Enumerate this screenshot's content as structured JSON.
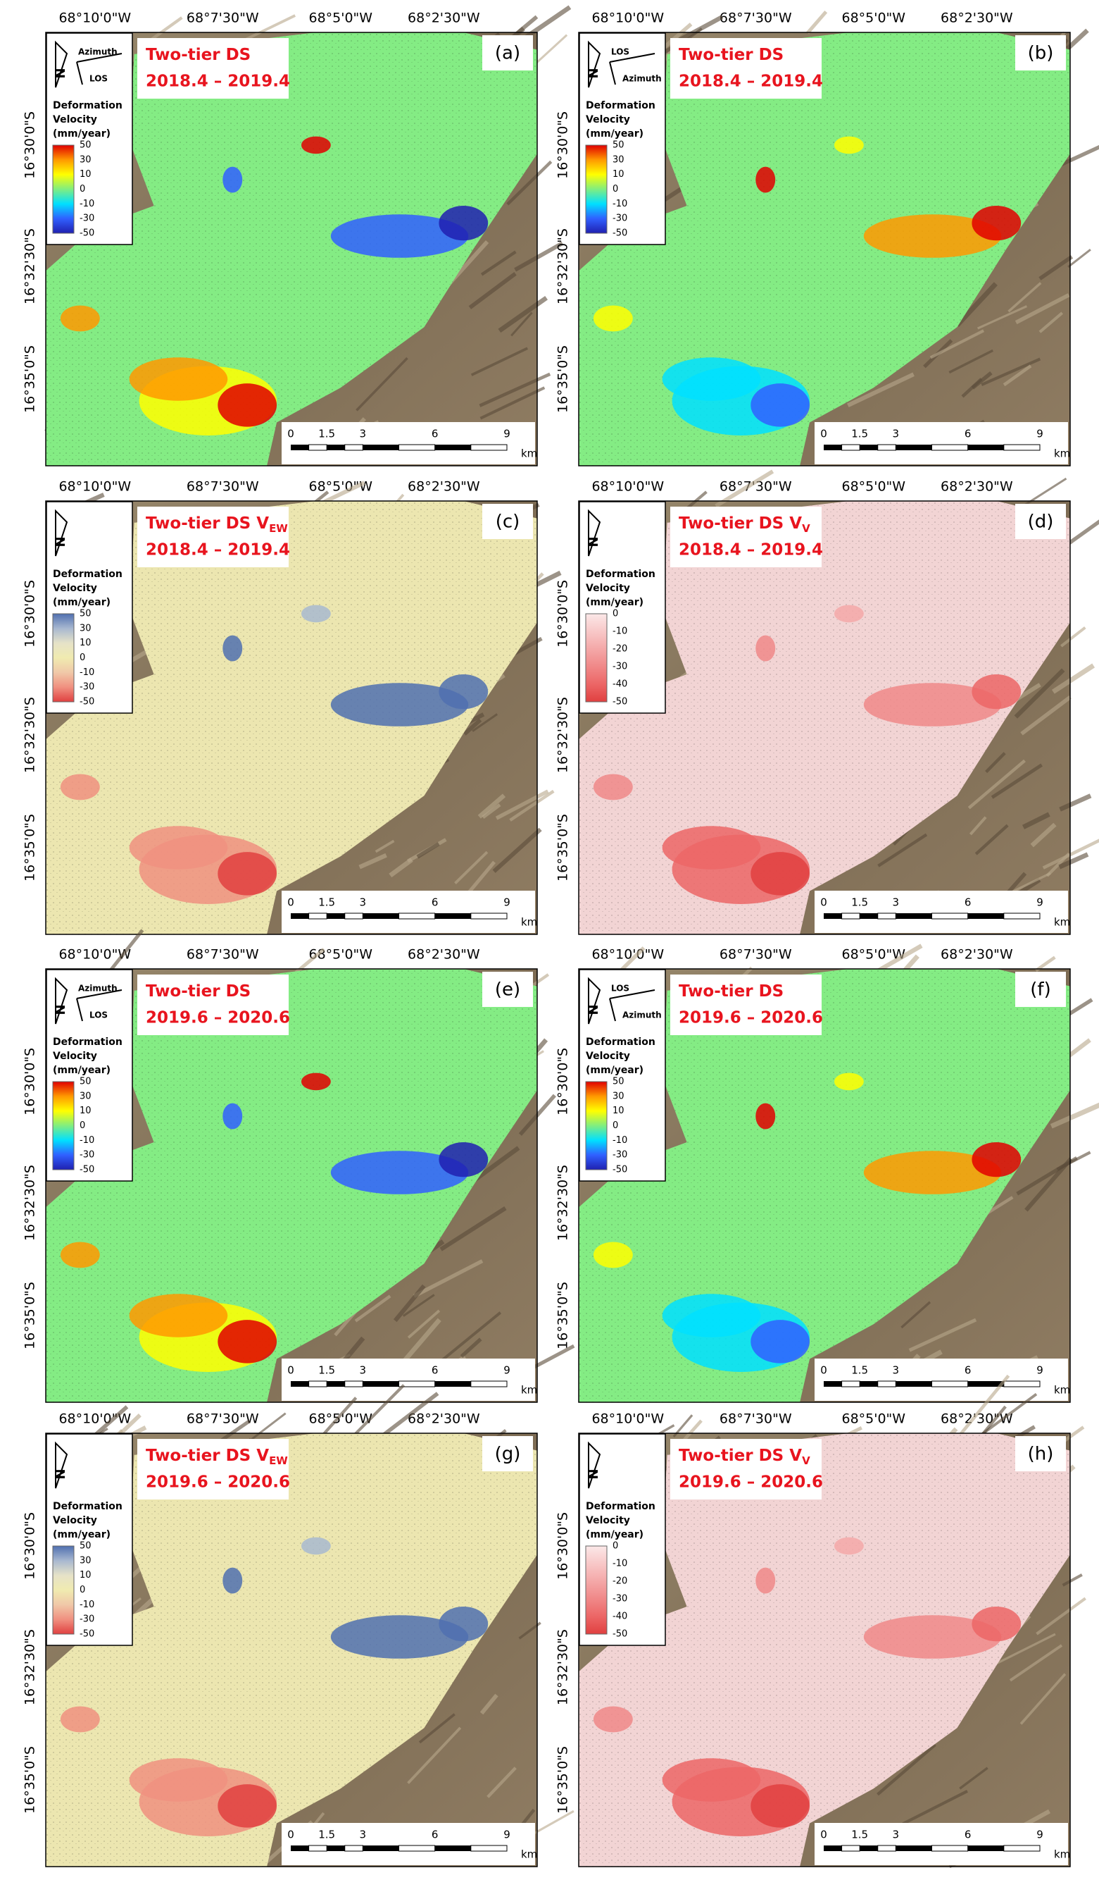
{
  "lon_labels": [
    "68°10'0\"W",
    "68°7'30\"W",
    "68°5'0\"W",
    "68°2'30\"W"
  ],
  "lat_labels": [
    "16°30'0\"S",
    "16°32'30\"S",
    "16°35'0\"S"
  ],
  "north": "N",
  "legend_title": [
    "Deformation",
    "Velocity",
    "(mm/year)"
  ],
  "scale_bar": {
    "ticks": [
      0,
      1.5,
      3,
      6,
      9
    ],
    "unit": "km"
  },
  "panels": [
    {
      "label": "(a)",
      "title": "Two-tier DS",
      "period": "2018.4 – 2019.4",
      "arrows": [
        "Azimuth",
        "LOS"
      ],
      "legend_ticks": [
        50,
        30,
        10,
        0,
        -10,
        -30,
        -50
      ],
      "colors": [
        "#e00000",
        "#ff9900",
        "#ffff00",
        "#80ee80",
        "#00e0ff",
        "#3060ff",
        "#2020b0"
      ],
      "field": "#84ec84"
    },
    {
      "label": "(b)",
      "title": "Two-tier DS",
      "period": "2018.4 – 2019.4",
      "arrows": [
        "LOS",
        "Azimuth"
      ],
      "legend_ticks": [
        50,
        30,
        10,
        0,
        -10,
        -30,
        -50
      ],
      "colors": [
        "#e00000",
        "#ff9900",
        "#ffff00",
        "#80ee80",
        "#00e0ff",
        "#3060ff",
        "#2020b0"
      ],
      "field": "#84ec84"
    },
    {
      "label": "(c)",
      "title": "Two-tier DS V",
      "title_sub": "EW",
      "period": "2018.4 – 2019.4",
      "legend_ticks": [
        50,
        30,
        10,
        0,
        -10,
        -30,
        -50
      ],
      "colors": [
        "#5070b0",
        "#a8b8d0",
        "#e6e2c8",
        "#f0ebb0",
        "#f0c8a8",
        "#f09080",
        "#e04040"
      ],
      "field": "#ece6b0"
    },
    {
      "label": "(d)",
      "title": "Two-tier DS V",
      "title_sub": "V",
      "period": "2018.4 – 2019.4",
      "legend_ticks": [
        0,
        -10,
        -20,
        -30,
        -40,
        -50
      ],
      "colors": [
        "#fbe8e8",
        "#f8c8c8",
        "#f4a8a8",
        "#f08888",
        "#ec6666",
        "#e04040"
      ],
      "field": "#f2d4d4"
    },
    {
      "label": "(e)",
      "title": "Two-tier DS",
      "period": "2019.6 – 2020.6",
      "arrows": [
        "Azimuth",
        "LOS"
      ],
      "legend_ticks": [
        50,
        30,
        10,
        0,
        -10,
        -30,
        -50
      ],
      "colors": [
        "#e00000",
        "#ff9900",
        "#ffff00",
        "#80ee80",
        "#00e0ff",
        "#3060ff",
        "#2020b0"
      ],
      "field": "#84ec84"
    },
    {
      "label": "(f)",
      "title": "Two-tier DS",
      "period": "2019.6 – 2020.6",
      "arrows": [
        "LOS",
        "Azimuth"
      ],
      "legend_ticks": [
        50,
        30,
        10,
        0,
        -10,
        -30,
        -50
      ],
      "colors": [
        "#e00000",
        "#ff9900",
        "#ffff00",
        "#80ee80",
        "#00e0ff",
        "#3060ff",
        "#2020b0"
      ],
      "field": "#84ec84"
    },
    {
      "label": "(g)",
      "title": "Two-tier DS V",
      "title_sub": "EW",
      "period": "2019.6 – 2020.6",
      "legend_ticks": [
        50,
        30,
        10,
        0,
        -10,
        -30,
        -50
      ],
      "colors": [
        "#5070b0",
        "#a8b8d0",
        "#e6e2c8",
        "#f0ebb0",
        "#f0c8a8",
        "#f09080",
        "#e04040"
      ],
      "field": "#ece6b0"
    },
    {
      "label": "(h)",
      "title": "Two-tier DS V",
      "title_sub": "V",
      "period": "2019.6 – 2020.6",
      "legend_ticks": [
        0,
        -10,
        -20,
        -30,
        -40,
        -50
      ],
      "colors": [
        "#fbe8e8",
        "#f8c8c8",
        "#f4a8a8",
        "#f08888",
        "#ec6666",
        "#e04040"
      ],
      "field": "#f2d4d4"
    }
  ]
}
